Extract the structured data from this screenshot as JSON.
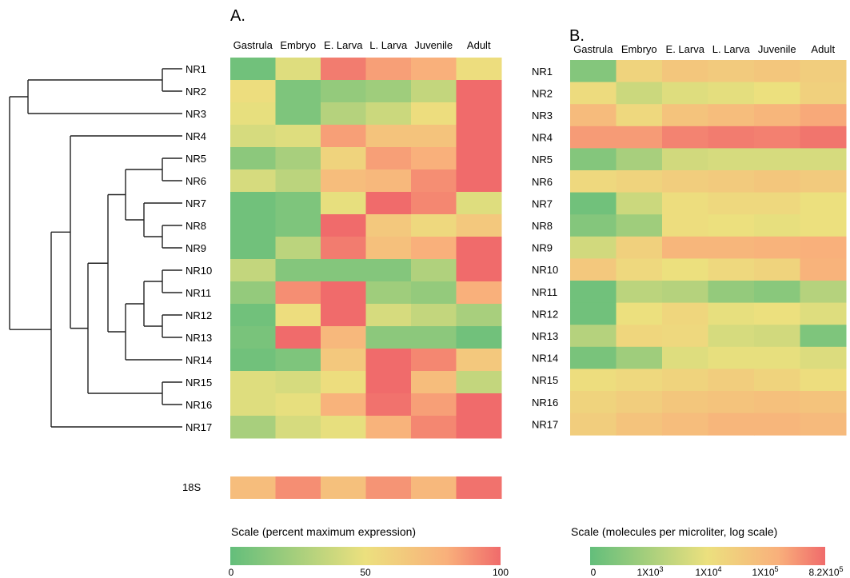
{
  "chart_data": [
    {
      "type": "heatmap",
      "panel": "A.",
      "columns": [
        "Gastrula",
        "Embryo",
        "E. Larva",
        "L. Larva",
        "Juvenile",
        "Adult"
      ],
      "rows": [
        "NR1",
        "NR2",
        "NR3",
        "NR4",
        "NR5",
        "NR6",
        "NR7",
        "NR8",
        "NR9",
        "NR10",
        "NR11",
        "NR12",
        "NR13",
        "NR14",
        "NR15",
        "NR16",
        "NR17"
      ],
      "values": [
        [
          5,
          45,
          95,
          85,
          80,
          52
        ],
        [
          52,
          10,
          18,
          22,
          35,
          100
        ],
        [
          48,
          10,
          30,
          38,
          52,
          100
        ],
        [
          42,
          45,
          85,
          68,
          68,
          100
        ],
        [
          15,
          25,
          58,
          85,
          80,
          100
        ],
        [
          42,
          32,
          72,
          75,
          90,
          100
        ],
        [
          5,
          10,
          48,
          100,
          92,
          45
        ],
        [
          5,
          10,
          100,
          65,
          55,
          65
        ],
        [
          5,
          32,
          95,
          70,
          80,
          100
        ],
        [
          35,
          12,
          12,
          12,
          28,
          100
        ],
        [
          18,
          90,
          100,
          22,
          18,
          80
        ],
        [
          5,
          52,
          100,
          42,
          35,
          25
        ],
        [
          8,
          100,
          75,
          15,
          15,
          5
        ],
        [
          5,
          10,
          65,
          100,
          92,
          65
        ],
        [
          45,
          42,
          52,
          100,
          72,
          35
        ],
        [
          45,
          48,
          78,
          98,
          85,
          100
        ],
        [
          25,
          42,
          48,
          78,
          92,
          100
        ]
      ],
      "ref_row": {
        "label": "18S",
        "values": [
          72,
          90,
          70,
          88,
          75,
          98
        ]
      },
      "scale": {
        "title": "Scale (percent maximum expression)",
        "min": 0,
        "max": 100,
        "ticks": [
          "0",
          "50",
          "100"
        ]
      },
      "dendrogram": true
    },
    {
      "type": "heatmap",
      "panel": "B.",
      "columns": [
        "Gastrula",
        "Embryo",
        "E. Larva",
        "L. Larva",
        "Juvenile",
        "Adult"
      ],
      "rows": [
        "NR1",
        "NR2",
        "NR3",
        "NR4",
        "NR5",
        "NR6",
        "NR7",
        "NR8",
        "NR9",
        "NR10",
        "NR11",
        "NR12",
        "NR13",
        "NR14",
        "NR15",
        "NR16",
        "NR17"
      ],
      "values": [
        [
          0.12,
          0.58,
          0.66,
          0.64,
          0.66,
          0.62
        ],
        [
          0.53,
          0.38,
          0.45,
          0.47,
          0.5,
          0.6
        ],
        [
          0.73,
          0.55,
          0.68,
          0.72,
          0.76,
          0.82
        ],
        [
          0.86,
          0.86,
          0.93,
          0.95,
          0.94,
          0.97
        ],
        [
          0.12,
          0.25,
          0.4,
          0.42,
          0.42,
          0.42
        ],
        [
          0.55,
          0.58,
          0.62,
          0.64,
          0.66,
          0.64
        ],
        [
          0.05,
          0.38,
          0.52,
          0.55,
          0.55,
          0.5
        ],
        [
          0.12,
          0.22,
          0.52,
          0.5,
          0.48,
          0.5
        ],
        [
          0.4,
          0.6,
          0.76,
          0.76,
          0.78,
          0.8
        ],
        [
          0.65,
          0.55,
          0.5,
          0.55,
          0.58,
          0.78
        ],
        [
          0.05,
          0.32,
          0.3,
          0.18,
          0.14,
          0.3
        ],
        [
          0.05,
          0.5,
          0.56,
          0.48,
          0.5,
          0.45
        ],
        [
          0.3,
          0.56,
          0.55,
          0.42,
          0.4,
          0.1
        ],
        [
          0.08,
          0.22,
          0.45,
          0.48,
          0.48,
          0.44
        ],
        [
          0.52,
          0.55,
          0.58,
          0.62,
          0.58,
          0.52
        ],
        [
          0.58,
          0.62,
          0.66,
          0.68,
          0.7,
          0.68
        ],
        [
          0.62,
          0.68,
          0.72,
          0.76,
          0.76,
          0.74
        ]
      ],
      "scale": {
        "title": "Scale (molecules per microliter, log scale)",
        "ticks": [
          "0",
          "1X10",
          "1X10",
          "1X10",
          "8.2X10"
        ],
        "tick_exponents": [
          "",
          "3",
          "4",
          "5",
          "5"
        ]
      }
    }
  ],
  "colors": {
    "low": "#63be7b",
    "mid": "#f2e783",
    "high": "#f06b6b",
    "text": "#222222"
  }
}
